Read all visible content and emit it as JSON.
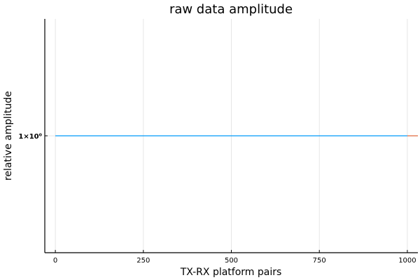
{
  "chart_data": {
    "type": "line",
    "title": "raw data amplitude",
    "xlabel": "TX-RX platform pairs",
    "ylabel": "relative amplitude",
    "xlim": [
      -30,
      1030
    ],
    "ylim": [
      0.9,
      1.1
    ],
    "xticks": [
      0,
      250,
      500,
      750,
      1000
    ],
    "xtick_labels": [
      "0",
      "250",
      "500",
      "750",
      "1000"
    ],
    "yticks": [
      1
    ],
    "ytick_labels": [
      "1×10⁰"
    ],
    "grid": true,
    "series": [
      {
        "color": "#009AFA",
        "x": [
          0,
          1000
        ],
        "y": [
          1,
          1
        ]
      },
      {
        "color": "#E26F46",
        "x": [
          1000,
          1030
        ],
        "y": [
          1,
          1
        ]
      }
    ]
  }
}
